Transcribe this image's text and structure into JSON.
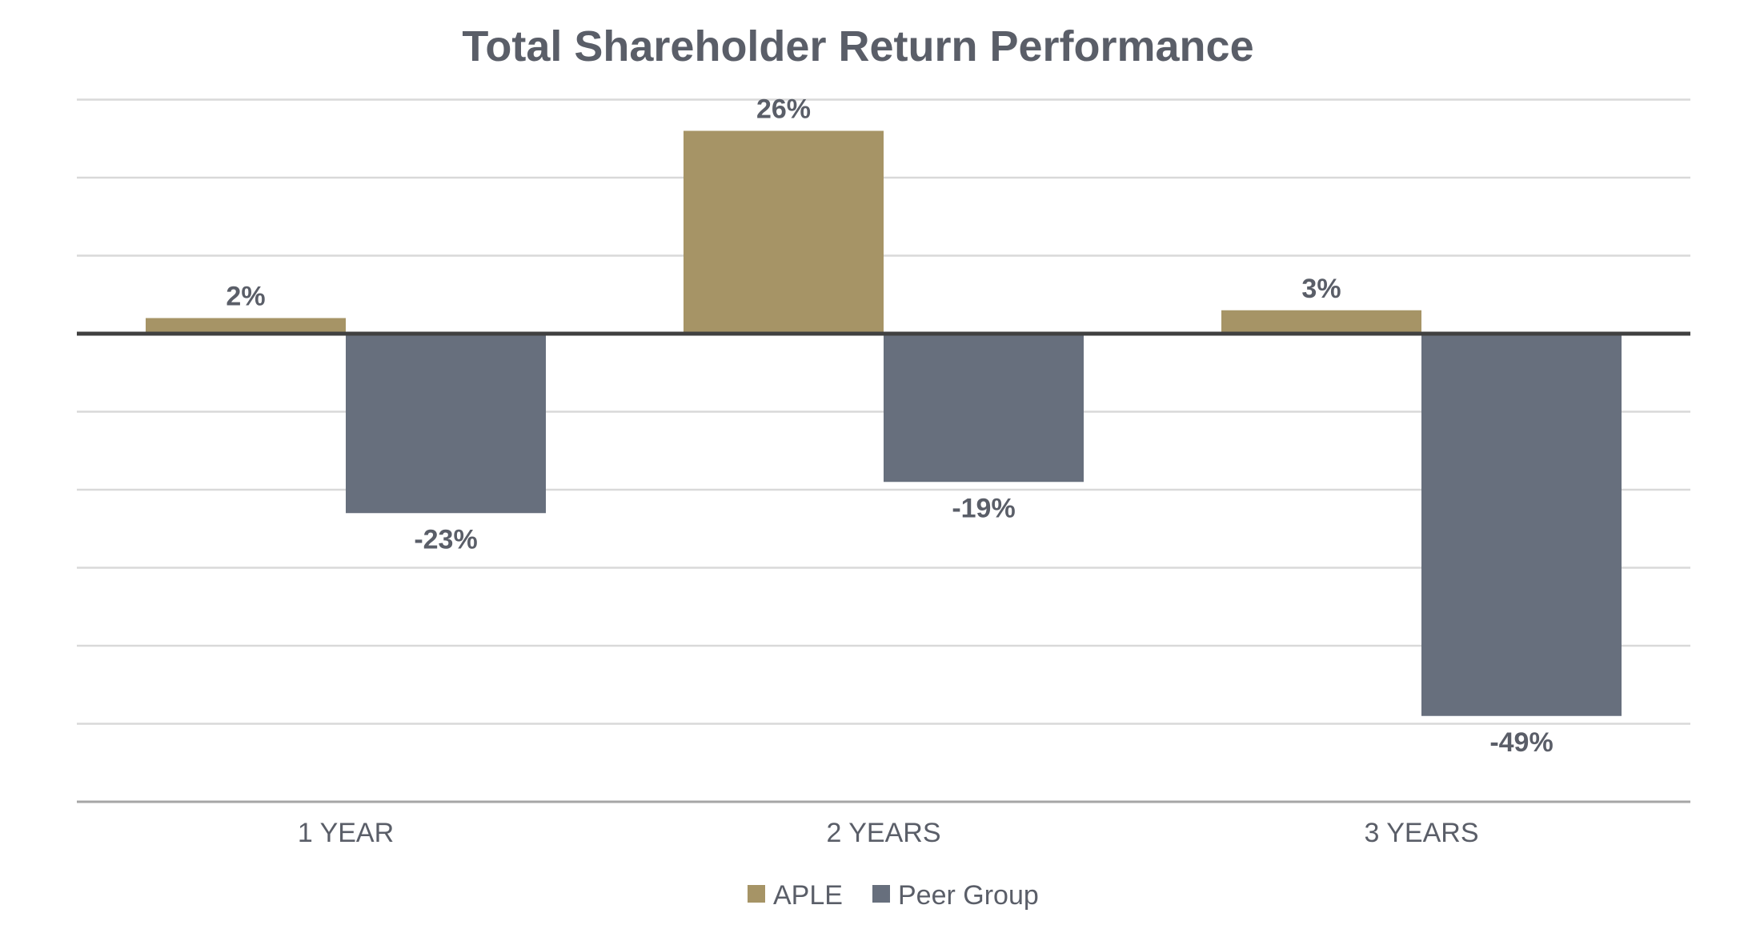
{
  "chart_data": {
    "type": "bar",
    "title": "Total Shareholder Return Performance",
    "categories": [
      "1 YEAR",
      "2 YEARS",
      "3 YEARS"
    ],
    "series": [
      {
        "name": "APLE",
        "values": [
          2,
          26,
          3
        ],
        "labels": [
          "2%",
          "26%",
          "3%"
        ],
        "color": "#a69466"
      },
      {
        "name": "Peer Group",
        "values": [
          -23,
          -19,
          -49
        ],
        "labels": [
          "-23%",
          "-19%",
          "-49%"
        ],
        "color": "#676f7d"
      }
    ],
    "ylim": [
      -60,
      30
    ],
    "grid": true,
    "legend_position": "bottom-center",
    "xlabel": "",
    "ylabel": "",
    "colors": {
      "text": "#5a5e68",
      "grid": "#d9d9d9",
      "zero_line": "#404040",
      "baseline": "#a6a6a6"
    }
  }
}
